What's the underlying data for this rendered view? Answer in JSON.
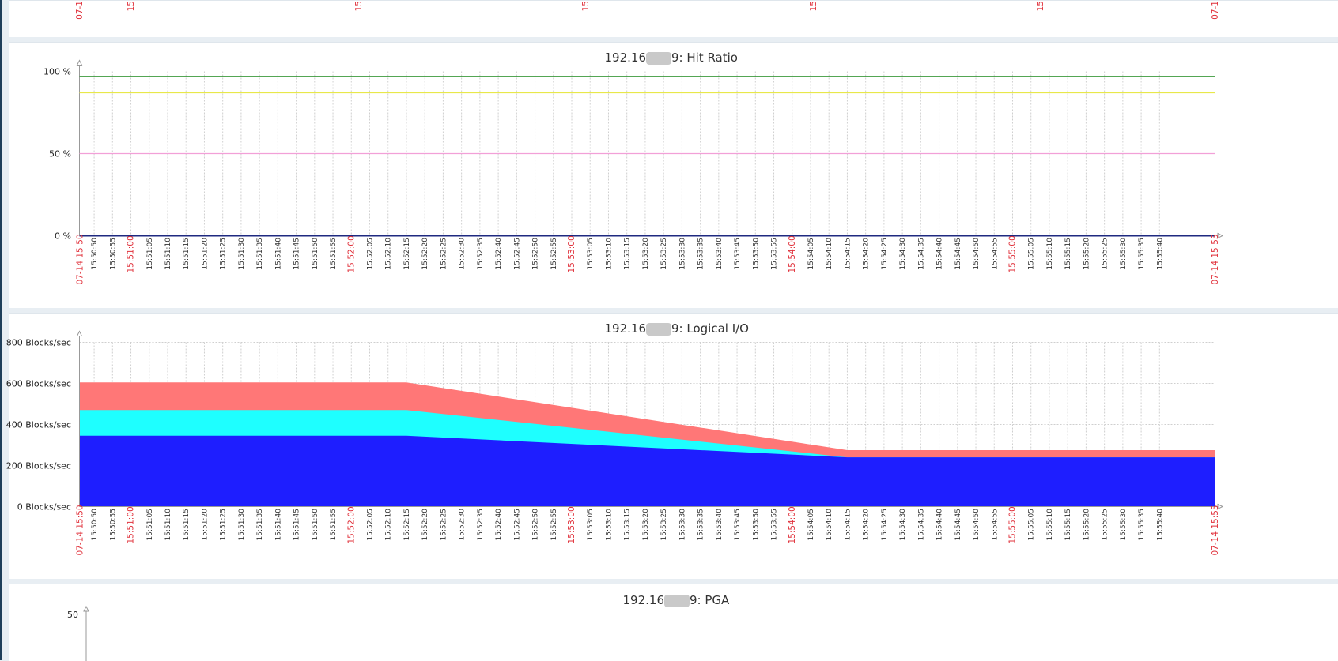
{
  "top_partial": {
    "tick_labels": [
      "07-1",
      "15",
      "15",
      "15",
      "15",
      "15",
      "07-1"
    ]
  },
  "hit_ratio": {
    "title": "192.16      9: Hit Ratio",
    "title_prefix": "192.16",
    "title_suffix": "9: Hit Ratio",
    "y_ticks": [
      "100 %",
      "50 %",
      "0 %"
    ],
    "colors": {
      "green": "#3c9a3c",
      "yellow": "#e8e84a",
      "pink": "#f2a0d8",
      "axis": "#1f2a80"
    }
  },
  "logical_io": {
    "title_prefix": "192.16",
    "title_suffix": "9: Logical I/O",
    "y_ticks": [
      "800 Blocks/sec",
      "600 Blocks/sec",
      "400 Blocks/sec",
      "200 Blocks/sec",
      "0 Blocks/sec"
    ],
    "colors": {
      "red": "#ff7777",
      "cyan": "#1effff",
      "blue": "#1e1eff"
    }
  },
  "pga": {
    "title_prefix": "192.16",
    "title_suffix": "9: PGA",
    "y_tick_partial": "50"
  },
  "x_axis": {
    "start_label": "07-14 15:50",
    "end_label": "07-14 15:55",
    "labels": [
      "15:50:50",
      "15:50:55",
      "15:51:00",
      "15:51:05",
      "15:51:10",
      "15:51:15",
      "15:51:20",
      "15:51:25",
      "15:51:30",
      "15:51:35",
      "15:51:40",
      "15:51:45",
      "15:51:50",
      "15:51:55",
      "15:52:00",
      "15:52:05",
      "15:52:10",
      "15:52:15",
      "15:52:20",
      "15:52:25",
      "15:52:30",
      "15:52:35",
      "15:52:40",
      "15:52:45",
      "15:52:50",
      "15:52:55",
      "15:53:00",
      "15:53:05",
      "15:53:10",
      "15:53:15",
      "15:53:20",
      "15:53:25",
      "15:53:30",
      "15:53:35",
      "15:53:40",
      "15:53:45",
      "15:53:50",
      "15:53:55",
      "15:54:00",
      "15:54:05",
      "15:54:10",
      "15:54:15",
      "15:54:20",
      "15:54:25",
      "15:54:30",
      "15:54:35",
      "15:54:40",
      "15:54:45",
      "15:54:50",
      "15:54:55",
      "15:55:00",
      "15:55:05",
      "15:55:10",
      "15:55:15",
      "15:55:20",
      "15:55:25",
      "15:55:30",
      "15:55:35",
      "15:55:40"
    ],
    "red_labels": [
      "15:51:00",
      "15:52:00",
      "15:53:00",
      "15:54:00",
      "15:55:00"
    ]
  },
  "chart_data": [
    {
      "type": "line",
      "title": "192.16      9: Hit Ratio",
      "ylim": [
        0,
        100
      ],
      "y_unit": "%",
      "x_range": [
        "07-14 15:50",
        "07-14 15:55"
      ],
      "series": [
        {
          "color": "#3c9a3c",
          "values": [
            97,
            97
          ]
        },
        {
          "color": "#e8e84a",
          "values": [
            87,
            87
          ]
        },
        {
          "color": "#f2a0d8",
          "values": [
            50,
            50
          ]
        },
        {
          "color": "#1f2a80",
          "values": [
            0,
            0
          ]
        }
      ],
      "grid": true
    },
    {
      "type": "area",
      "title": "192.16      9: Logical I/O",
      "ylim": [
        0,
        800
      ],
      "y_unit": "Blocks/sec",
      "x": [
        "15:50:46",
        "15:52:15",
        "15:54:15",
        "15:55:55"
      ],
      "series": [
        {
          "color": "#1e1eff",
          "values": [
            345,
            345,
            240,
            240
          ]
        },
        {
          "color": "#1effff",
          "values": [
            125,
            125,
            0,
            0
          ]
        },
        {
          "color": "#ff7777",
          "values": [
            135,
            135,
            35,
            35
          ]
        }
      ],
      "stacked": true,
      "grid": true
    }
  ]
}
